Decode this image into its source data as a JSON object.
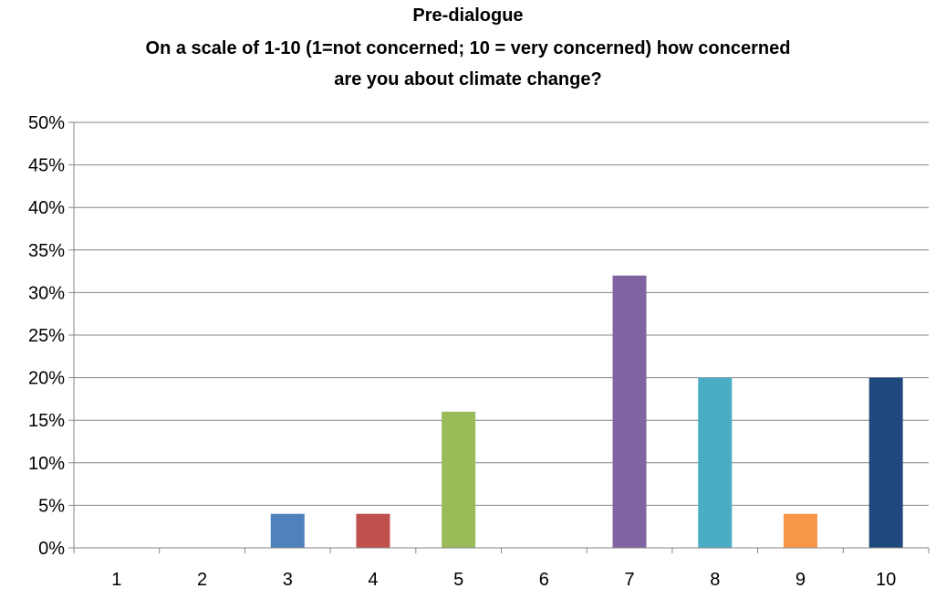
{
  "chart_data": {
    "type": "bar",
    "title_lines": [
      "Pre-dialogue",
      "On a scale of 1-10 (1=not concerned; 10 = very concerned) how concerned",
      "are you about climate change?"
    ],
    "categories": [
      "1",
      "2",
      "3",
      "4",
      "5",
      "6",
      "7",
      "8",
      "9",
      "10"
    ],
    "values": [
      0,
      0,
      4,
      4,
      16,
      0,
      32,
      20,
      4,
      20
    ],
    "value_unit": "%",
    "bar_colors": [
      "#4F81BD",
      "#C0504D",
      "#4F81BD",
      "#C0504D",
      "#9BBB59",
      "#8064A2",
      "#8064A2",
      "#4BACC6",
      "#F79646",
      "#1F497D"
    ],
    "ylim": [
      0,
      50
    ],
    "y_ticks": [
      "0%",
      "5%",
      "10%",
      "15%",
      "20%",
      "25%",
      "30%",
      "35%",
      "40%",
      "45%",
      "50%"
    ],
    "y_tick_values": [
      0,
      5,
      10,
      15,
      20,
      25,
      30,
      35,
      40,
      45,
      50
    ],
    "grid": true,
    "legend": "none",
    "gridline_color": "#868686"
  }
}
